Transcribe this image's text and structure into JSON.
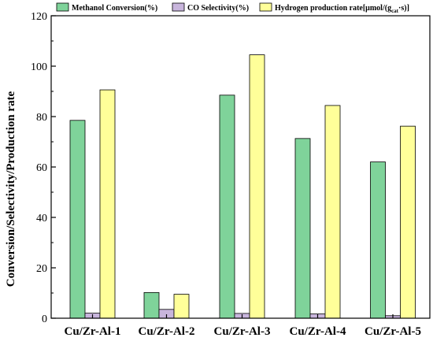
{
  "chart_data": {
    "type": "bar",
    "categories": [
      "Cu/Zr-Al-1",
      "Cu/Zr-Al-2",
      "Cu/Zr-Al-3",
      "Cu/Zr-Al-4",
      "Cu/Zr-Al-5"
    ],
    "series": [
      {
        "name": "Methanol Conversion(%)",
        "values": [
          78.5,
          10.2,
          88.5,
          71.3,
          62.0
        ],
        "color": "#7fd39a"
      },
      {
        "name": "CO Selectivity(%)",
        "values": [
          2.0,
          3.5,
          1.9,
          1.7,
          1.0
        ],
        "color": "#c8b5dc"
      },
      {
        "name": "Hydrogen production rate[μmol/(g_cat·s)]",
        "values": [
          90.6,
          9.5,
          104.5,
          84.4,
          76.2
        ],
        "color": "#ffff99"
      }
    ],
    "legend_text": {
      "s0": "Methanol Conversion(%)",
      "s1": "CO Selectivity(%)",
      "s2_main": "Hydrogen production rate[μmol/(g",
      "s2_sub": "cat",
      "s2_sup": "·s)]"
    },
    "ylabel": "Conversion/Selectivity/Production rate",
    "xlabel": "",
    "ylim": [
      0,
      120
    ],
    "yticks": [
      0,
      20,
      40,
      60,
      80,
      100,
      120
    ],
    "legend_position": "top",
    "grid": false
  }
}
